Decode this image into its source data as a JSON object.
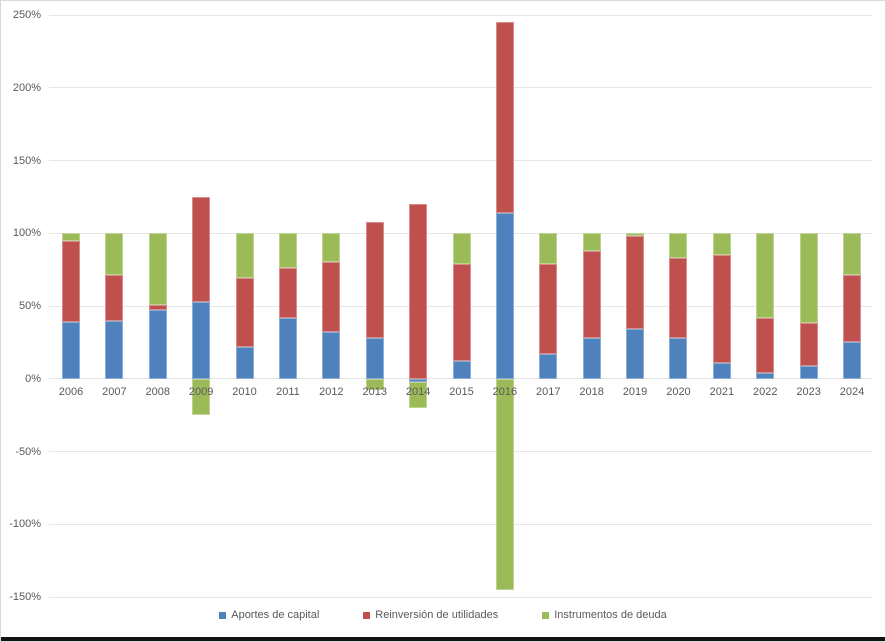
{
  "window": {
    "background": "#FFFFFF",
    "border_color": "#D9D9D9",
    "bottom_edge_color": "#111111"
  },
  "chart_data": {
    "type": "bar",
    "stacked": true,
    "unit": "percent",
    "title": "",
    "xlabel": "",
    "ylabel": "",
    "ylim": [
      -150,
      250
    ],
    "grid": "horizontal",
    "gridline_color": "#E6E6E6",
    "axis_text_color": "#595959",
    "legend_position": "bottom",
    "yticks": [
      {
        "value": 250,
        "label": "250%"
      },
      {
        "value": 200,
        "label": "200%"
      },
      {
        "value": 150,
        "label": "150%"
      },
      {
        "value": 100,
        "label": "100%"
      },
      {
        "value": 50,
        "label": "50%"
      },
      {
        "value": 0,
        "label": "0%"
      },
      {
        "value": -50,
        "label": "-50%"
      },
      {
        "value": -100,
        "label": "-100%"
      },
      {
        "value": -150,
        "label": "-150%"
      }
    ],
    "categories": [
      "2006",
      "2007",
      "2008",
      "2009",
      "2010",
      "2011",
      "2012",
      "2013",
      "2014",
      "2015",
      "2016",
      "2017",
      "2018",
      "2019",
      "2020",
      "2021",
      "2022",
      "2023",
      "2024"
    ],
    "series": [
      {
        "id": "aportes-de-capital",
        "name": "Aportes de capital",
        "color": "#4F81BD",
        "values": [
          39,
          40,
          47,
          53,
          22,
          42,
          32,
          28,
          -2,
          12,
          114,
          17,
          28,
          34,
          28,
          11,
          4,
          9,
          25
        ]
      },
      {
        "id": "reinversion-de-utilidades",
        "name": "Reinversión de utilidades",
        "color": "#C0504D",
        "values": [
          56,
          31,
          4,
          72,
          47,
          34,
          48,
          80,
          120,
          67,
          131,
          62,
          60,
          64,
          55,
          74,
          38,
          29,
          46
        ]
      },
      {
        "id": "instrumentos-de-deuda",
        "name": "Instrumentos de deuda",
        "color": "#9BBB59",
        "values": [
          5,
          29,
          49,
          -25,
          31,
          24,
          20,
          -8,
          -18,
          21,
          -145,
          21,
          12,
          2,
          17,
          15,
          58,
          62,
          29
        ]
      }
    ]
  }
}
